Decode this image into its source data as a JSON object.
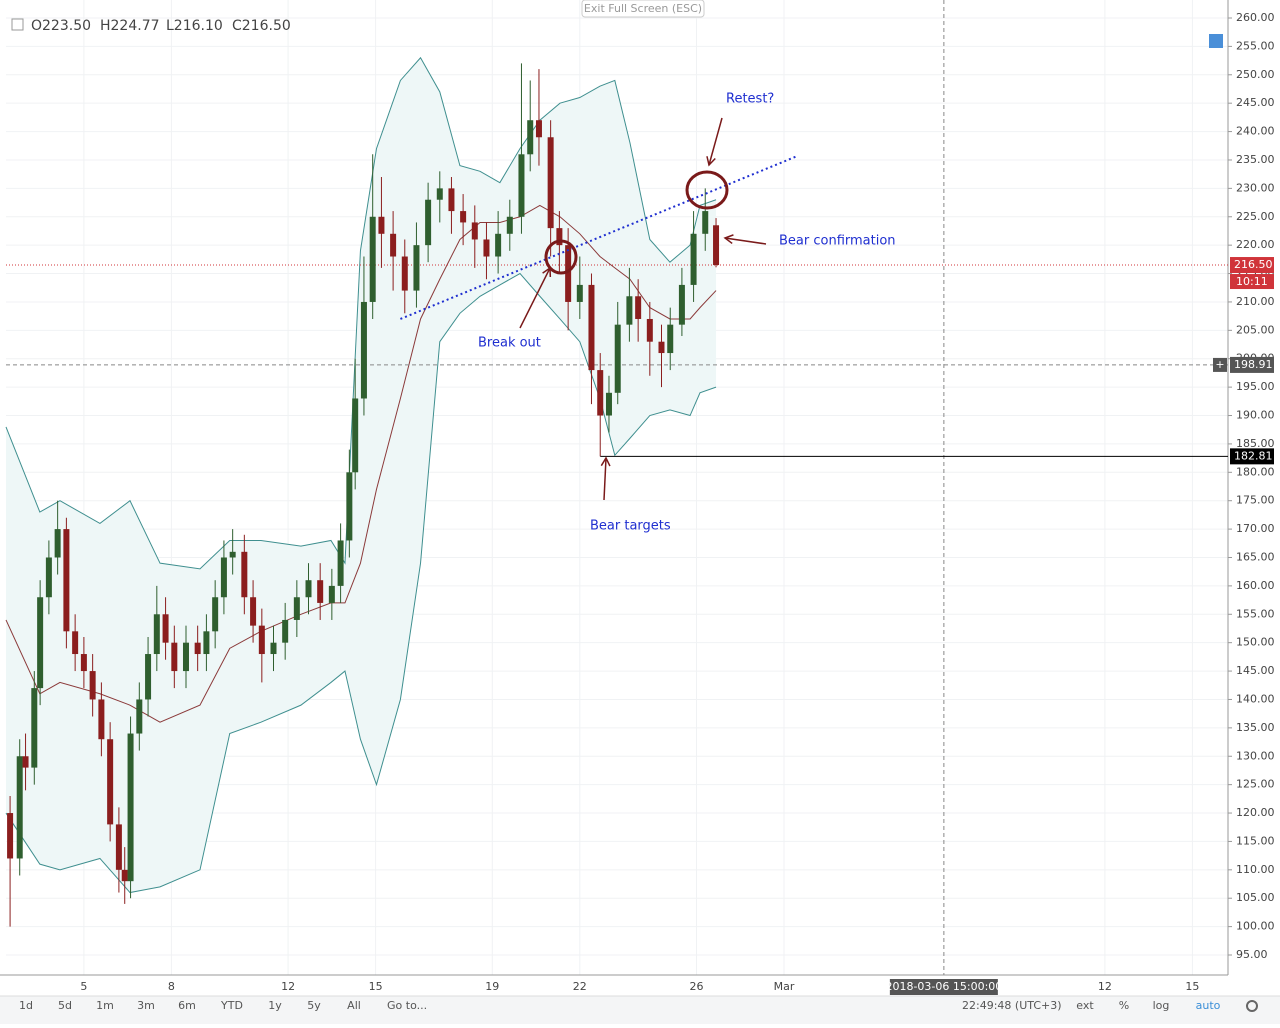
{
  "header": {
    "ohlc_labels": [
      "O223.50",
      "H224.77",
      "L216.10",
      "C216.50"
    ],
    "exit_button": "Exit Full Screen (ESC)"
  },
  "toolbar": {
    "ranges": [
      "1d",
      "5d",
      "1m",
      "3m",
      "6m",
      "YTD",
      "1y",
      "5y",
      "All"
    ],
    "goto": "Go to...",
    "clock": "22:49:48 (UTC+3)",
    "options": [
      "ext",
      "%",
      "log",
      "auto"
    ]
  },
  "chart_data": {
    "type": "candlestick",
    "up_color": "#2f5f2f",
    "down_color": "#8b1e1e",
    "xlim": [
      2.33,
      44.22
    ],
    "xticks": [
      5,
      8,
      12,
      15,
      19,
      22,
      26,
      {
        "value": 29,
        "label": "Mar"
      },
      {
        "value": 40,
        "label": "12"
      },
      {
        "value": 43,
        "label": "15"
      }
    ],
    "ylim": [
      91.48,
      263.17
    ],
    "yticks": [
      {
        "value": 260,
        "label": "260.00"
      },
      {
        "value": 255,
        "label": "255.00"
      },
      {
        "value": 250,
        "label": "250.00"
      },
      {
        "value": 245,
        "label": "245.00"
      },
      {
        "value": 240,
        "label": "240.00"
      },
      {
        "value": 235,
        "label": "235.00"
      },
      {
        "value": 230,
        "label": "230.00"
      },
      {
        "value": 225,
        "label": "225.00"
      },
      {
        "value": 220,
        "label": "220.00"
      },
      {
        "value": 215,
        "label": "215.00"
      },
      {
        "value": 210,
        "label": "210.00"
      },
      {
        "value": 205,
        "label": "205.00"
      },
      {
        "value": 200,
        "label": "200.00"
      },
      {
        "value": 195,
        "label": "195.00"
      },
      {
        "value": 190,
        "label": "190.00"
      },
      {
        "value": 185,
        "label": "185.00"
      },
      {
        "value": 180,
        "label": "180.00"
      },
      {
        "value": 175,
        "label": "175.00"
      },
      {
        "value": 170,
        "label": "170.00"
      },
      {
        "value": 165,
        "label": "165.00"
      },
      {
        "value": 160,
        "label": "160.00"
      },
      {
        "value": 155,
        "label": "155.00"
      },
      {
        "value": 150,
        "label": "150.00"
      },
      {
        "value": 145,
        "label": "145.00"
      },
      {
        "value": 140,
        "label": "140.00"
      },
      {
        "value": 135,
        "label": "135.00"
      },
      {
        "value": 130,
        "label": "130.00"
      },
      {
        "value": 125,
        "label": "125.00"
      },
      {
        "value": 120,
        "label": "120.00"
      },
      {
        "value": 115,
        "label": "115.00"
      },
      {
        "value": 110,
        "label": "110.00"
      },
      {
        "value": 105,
        "label": "105.00"
      },
      {
        "value": 100,
        "label": "100.00"
      },
      {
        "value": 95,
        "label": "95.00"
      }
    ],
    "grid": true,
    "candles": {
      "x": [
        2.47,
        2.8,
        3.0,
        3.3,
        3.5,
        3.8,
        4.1,
        4.4,
        4.7,
        5.0,
        5.3,
        5.6,
        5.9,
        6.2,
        6.4,
        6.6,
        6.9,
        7.2,
        7.5,
        7.8,
        8.1,
        8.5,
        8.9,
        9.2,
        9.5,
        9.8,
        10.1,
        10.5,
        10.8,
        11.1,
        11.5,
        11.9,
        12.3,
        12.7,
        13.1,
        13.5,
        13.8,
        14.1,
        14.3,
        14.6,
        14.9,
        15.2,
        15.6,
        16.0,
        16.4,
        16.8,
        17.2,
        17.6,
        18.0,
        18.4,
        18.8,
        19.2,
        19.6,
        20.0,
        20.3,
        20.6,
        21.0,
        21.3,
        21.6,
        22.0,
        22.4,
        22.7,
        23.0,
        23.3,
        23.7,
        24.0,
        24.4,
        24.8,
        25.1,
        25.5,
        25.9,
        26.3,
        26.67
      ],
      "open": [
        120,
        112,
        130,
        128,
        142,
        158,
        165,
        170,
        152,
        148,
        145,
        140,
        133,
        118,
        110,
        108,
        134,
        140,
        148,
        155,
        150,
        145,
        150,
        148,
        152,
        158,
        165,
        166,
        158,
        153,
        148,
        150,
        154,
        158,
        161,
        157,
        160,
        168,
        180,
        193,
        210,
        225,
        222,
        218,
        212,
        220,
        228,
        230,
        226,
        224,
        221,
        218,
        222,
        225,
        236,
        242,
        239,
        223,
        220,
        210,
        213,
        198,
        190,
        194,
        206,
        211,
        207,
        203,
        201,
        206,
        213,
        222,
        223.5
      ],
      "high": [
        123,
        133,
        134,
        145,
        161,
        168,
        175,
        172,
        155,
        151,
        148,
        143,
        136,
        121,
        114,
        137,
        143,
        151,
        160,
        158,
        153,
        153,
        153,
        155,
        161,
        168,
        170,
        169,
        161,
        156,
        153,
        157,
        161,
        164,
        164,
        163,
        171,
        184,
        200,
        218,
        236,
        232,
        226,
        221,
        224,
        231,
        233,
        232,
        229,
        227,
        224,
        226,
        228,
        252,
        249,
        251,
        242,
        226,
        223,
        218,
        215,
        201,
        197,
        210,
        216,
        214,
        210,
        206,
        209,
        216,
        226,
        230,
        224.77
      ],
      "low": [
        100,
        109,
        124,
        125,
        139,
        155,
        162,
        149,
        145,
        142,
        137,
        130,
        115,
        106,
        104,
        105,
        131,
        137,
        145,
        147,
        142,
        142,
        145,
        145,
        149,
        155,
        162,
        155,
        150,
        143,
        145,
        147,
        151,
        155,
        154,
        154,
        157,
        165,
        177,
        190,
        207,
        216,
        212,
        208,
        209,
        217,
        224,
        222,
        220,
        216,
        214,
        215,
        219,
        222,
        233,
        234,
        218,
        215,
        205,
        207,
        192,
        182.81,
        187,
        192,
        203,
        203,
        197,
        195,
        198,
        204,
        210,
        219,
        216.1
      ],
      "close": [
        112,
        130,
        128,
        142,
        158,
        165,
        170,
        152,
        148,
        145,
        140,
        133,
        118,
        110,
        108,
        134,
        140,
        148,
        155,
        150,
        145,
        150,
        148,
        152,
        158,
        165,
        166,
        158,
        153,
        148,
        150,
        154,
        158,
        161,
        157,
        160,
        168,
        180,
        193,
        210,
        225,
        222,
        218,
        212,
        220,
        228,
        230,
        226,
        224,
        221,
        218,
        222,
        225,
        236,
        242,
        239,
        223,
        220,
        210,
        213,
        198,
        190,
        194,
        206,
        211,
        207,
        203,
        201,
        206,
        213,
        222,
        226,
        216.5
      ]
    },
    "bands": {
      "x": [
        2.33,
        3.49,
        4.18,
        5.55,
        6.58,
        7.61,
        8.98,
        10.0,
        11.07,
        12.44,
        13.47,
        13.95,
        14.48,
        15.03,
        15.85,
        16.54,
        17.2,
        17.89,
        18.58,
        19.26,
        19.95,
        20.63,
        21.32,
        22.0,
        22.69,
        23.2,
        23.72,
        24.4,
        25.09,
        25.78,
        26.12,
        26.67
      ],
      "upper": [
        188,
        173,
        175,
        171,
        175,
        164,
        163,
        168,
        168,
        167,
        168,
        164,
        219,
        237,
        249,
        253,
        247,
        234,
        233,
        231,
        237,
        242,
        245,
        246,
        248,
        249,
        238,
        221,
        217,
        220,
        227,
        228
      ],
      "middle": [
        154,
        141,
        143,
        141,
        139,
        136,
        139,
        149,
        152,
        155,
        157,
        157,
        164,
        177,
        193,
        207,
        214,
        221,
        224,
        224,
        225,
        227,
        225,
        222,
        218,
        216,
        214,
        209,
        207,
        207,
        209,
        212
      ],
      "lower": [
        120,
        111,
        110,
        112,
        106,
        107,
        110,
        134,
        136,
        139,
        143,
        145,
        133,
        125,
        140,
        164,
        203,
        208,
        211,
        213,
        215,
        211,
        207,
        203,
        193,
        183,
        186,
        190,
        191,
        190,
        194,
        195
      ],
      "band_color": "#3f8f8f",
      "middle_color": "#8b3a3a",
      "fill": "#eef7f7"
    },
    "trendline": {
      "x": [
        15.85,
        29.46
      ],
      "values": [
        207,
        235.7
      ],
      "color": "#1f2fd0"
    },
    "last_price": {
      "value": 216.5,
      "label": "216.50",
      "countdown": "10:11",
      "color": "#d0343a"
    },
    "crosshair": {
      "x": {
        "value": 34.48,
        "label": "2018-03-06 15:00:00"
      },
      "y": {
        "value": 198.91,
        "label": "198.91"
      }
    },
    "support": {
      "value": 182.81,
      "label": "182.81",
      "x_start": 22.7
    },
    "annotations": [
      "Retest?",
      "Bear confirmation",
      "Break out",
      "Bear targets"
    ]
  }
}
